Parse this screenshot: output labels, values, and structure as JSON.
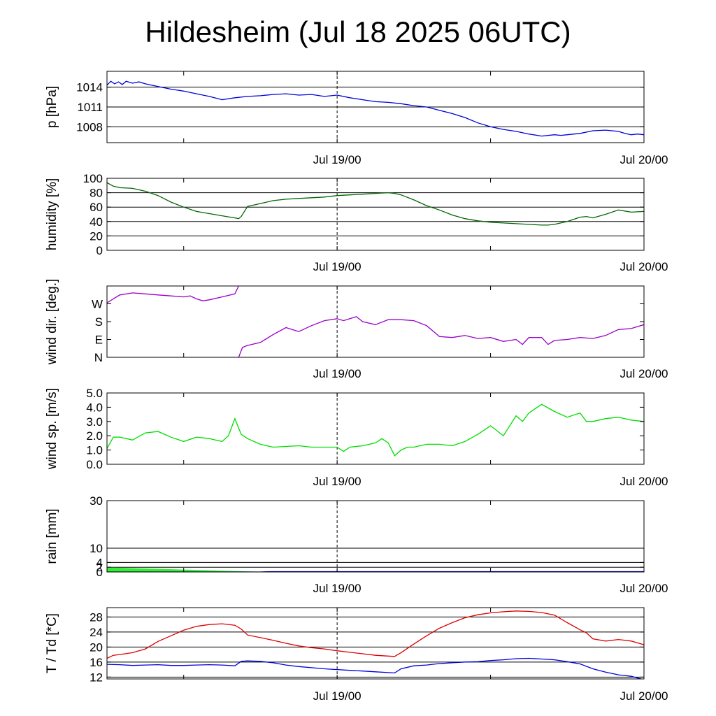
{
  "title": "Hildesheim (Jul 18 2025 06UTC)",
  "time_axis": {
    "start_hour": 0,
    "end_hour": 42,
    "major_labels": [
      {
        "hour": 18,
        "label": "Jul 19/00"
      },
      {
        "hour": 42,
        "label": "Jul 20/00"
      }
    ],
    "minor_tick_hours": [
      6,
      30
    ],
    "dashed_marker_hour": 18
  },
  "chart_data": [
    {
      "type": "line",
      "ylabel": "p [hPa]",
      "ylim": [
        1005.6,
        1016.4
      ],
      "yticks": [
        {
          "v": 1008,
          "label": "1008"
        },
        {
          "v": 1011,
          "label": "1011"
        },
        {
          "v": 1014,
          "label": "1014"
        }
      ],
      "grid": [
        1008,
        1011,
        1014
      ],
      "series": [
        {
          "color": "#0000dd",
          "x": [
            0,
            0.3,
            0.6,
            0.9,
            1.2,
            1.5,
            2,
            2.5,
            3,
            4,
            5,
            6,
            7,
            8,
            9,
            10,
            11,
            12,
            13,
            14,
            15,
            16,
            17,
            18,
            19,
            20,
            21,
            22,
            23,
            24,
            25,
            26,
            27,
            28,
            29,
            30,
            31,
            32,
            33,
            34,
            35,
            35.5,
            36,
            37,
            38,
            39,
            40,
            40.5,
            41,
            41.5,
            42
          ],
          "y": [
            1014.3,
            1014.9,
            1014.5,
            1014.8,
            1014.4,
            1014.9,
            1014.6,
            1014.8,
            1014.5,
            1014.1,
            1013.7,
            1013.4,
            1013.0,
            1012.6,
            1012.1,
            1012.4,
            1012.6,
            1012.7,
            1012.9,
            1013.0,
            1012.8,
            1012.9,
            1012.6,
            1012.8,
            1012.4,
            1012.1,
            1011.8,
            1011.7,
            1011.5,
            1011.2,
            1011.0,
            1010.5,
            1010.0,
            1009.4,
            1008.6,
            1008.0,
            1007.6,
            1007.3,
            1006.9,
            1006.6,
            1006.8,
            1006.7,
            1006.8,
            1007.0,
            1007.4,
            1007.5,
            1007.3,
            1007.0,
            1006.8,
            1006.9,
            1006.8
          ]
        }
      ]
    },
    {
      "type": "line",
      "ylabel": "humidity [%]",
      "ylim": [
        0,
        100
      ],
      "yticks": [
        {
          "v": 0,
          "label": "0"
        },
        {
          "v": 20,
          "label": "20"
        },
        {
          "v": 40,
          "label": "40"
        },
        {
          "v": 60,
          "label": "60"
        },
        {
          "v": 80,
          "label": "80"
        },
        {
          "v": 100,
          "label": "100"
        }
      ],
      "grid": [
        20,
        40,
        60,
        80
      ],
      "series": [
        {
          "color": "#006600",
          "x": [
            0,
            0.5,
            1,
            2,
            3,
            4,
            5,
            6,
            7,
            8,
            9,
            10,
            10.3,
            10.5,
            11,
            12,
            13,
            14,
            15,
            16,
            17,
            18,
            19,
            20,
            21,
            22,
            22.5,
            23,
            24,
            25,
            26,
            27,
            28,
            29,
            30,
            31,
            32,
            33,
            34,
            34.5,
            35,
            36,
            37,
            37.5,
            38,
            39,
            40,
            41,
            42
          ],
          "y": [
            94,
            89,
            87,
            86,
            82,
            76,
            67,
            60,
            54,
            51,
            48,
            45,
            44,
            47,
            61,
            65,
            69,
            71,
            72,
            73,
            74,
            76,
            77,
            78,
            79,
            80,
            79,
            77,
            70,
            62,
            56,
            49,
            44,
            41,
            39,
            38,
            37,
            36,
            35,
            35,
            36,
            40,
            46,
            47,
            45,
            50,
            56,
            53,
            54
          ]
        }
      ]
    },
    {
      "type": "line",
      "ylabel": "wind dir. [deg.]",
      "ylim": [
        0,
        360
      ],
      "yticks": [
        {
          "v": 0,
          "label": "N"
        },
        {
          "v": 90,
          "label": "E"
        },
        {
          "v": 180,
          "label": "S"
        },
        {
          "v": 270,
          "label": "W"
        }
      ],
      "grid": [],
      "series": [
        {
          "color": "#9900cc",
          "x": [
            0,
            0.5,
            1,
            2,
            3,
            4,
            5,
            6,
            6.5,
            7,
            7.5,
            8,
            9,
            10,
            10.3
          ],
          "y": [
            275,
            295,
            315,
            325,
            320,
            315,
            310,
            305,
            310,
            295,
            285,
            290,
            305,
            320,
            360
          ]
        },
        {
          "color": "#9900cc",
          "x": [
            10.3,
            10.6,
            11,
            12,
            13,
            14,
            15,
            16,
            17,
            18,
            18.5,
            19,
            19.5,
            20,
            21,
            22,
            23,
            24,
            25,
            26,
            27,
            28,
            29,
            30,
            31,
            32,
            32.5,
            33,
            34,
            34.5,
            35,
            36,
            37,
            38,
            39,
            40,
            41,
            42
          ],
          "y": [
            0,
            50,
            60,
            75,
            115,
            150,
            130,
            160,
            185,
            195,
            185,
            195,
            205,
            180,
            165,
            190,
            190,
            185,
            160,
            105,
            100,
            110,
            95,
            100,
            80,
            90,
            65,
            100,
            100,
            65,
            85,
            90,
            100,
            95,
            110,
            140,
            145,
            165
          ]
        }
      ]
    },
    {
      "type": "line",
      "ylabel": "wind sp. [m/s]",
      "ylim": [
        0,
        5
      ],
      "yticks": [
        {
          "v": 0,
          "label": "0.0"
        },
        {
          "v": 1,
          "label": "1.0"
        },
        {
          "v": 2,
          "label": "2.0"
        },
        {
          "v": 3,
          "label": "3.0"
        },
        {
          "v": 4,
          "label": "4.0"
        },
        {
          "v": 5,
          "label": "5.0"
        }
      ],
      "grid": [],
      "series": [
        {
          "color": "#00dd00",
          "x": [
            0,
            0.5,
            1,
            2,
            3,
            4,
            5,
            6,
            7,
            8,
            9,
            9.5,
            10,
            10.5,
            11,
            12,
            13,
            14,
            15,
            16,
            17,
            18,
            18.5,
            19,
            20,
            21,
            21.5,
            22,
            22.5,
            23,
            23.5,
            24,
            25,
            26,
            27,
            28,
            29,
            30,
            31,
            32,
            32.5,
            33,
            34,
            35,
            36,
            37,
            37.5,
            38,
            39,
            40,
            41,
            42
          ],
          "y": [
            1.1,
            1.9,
            1.9,
            1.7,
            2.2,
            2.3,
            1.9,
            1.6,
            1.9,
            1.8,
            1.6,
            2.0,
            3.2,
            2.1,
            1.8,
            1.4,
            1.2,
            1.25,
            1.3,
            1.2,
            1.2,
            1.2,
            0.9,
            1.2,
            1.3,
            1.5,
            1.8,
            1.5,
            0.6,
            1.0,
            1.2,
            1.2,
            1.4,
            1.4,
            1.3,
            1.6,
            2.1,
            2.7,
            2.0,
            3.4,
            3.0,
            3.6,
            4.2,
            3.7,
            3.3,
            3.6,
            3.0,
            3.0,
            3.2,
            3.3,
            3.1,
            3.0
          ]
        }
      ]
    },
    {
      "type": "area",
      "ylabel": "rain [mm]",
      "ylim": [
        0,
        30
      ],
      "yticks": [
        {
          "v": 0,
          "label": "0"
        },
        {
          "v": 2,
          "label": "2"
        },
        {
          "v": 4,
          "label": "4"
        },
        {
          "v": 10,
          "label": "10"
        },
        {
          "v": 30,
          "label": "30"
        }
      ],
      "grid": [
        2,
        4,
        10,
        30
      ],
      "series": [
        {
          "color": "#33ee33",
          "fill": true,
          "x": [
            0,
            12.5
          ],
          "y": [
            1.9,
            0.0
          ]
        },
        {
          "color": "#0000dd",
          "x": [
            0,
            12,
            12.5,
            13,
            42
          ],
          "y": [
            0,
            0,
            0.1,
            0.15,
            0.15
          ]
        }
      ]
    },
    {
      "type": "line",
      "ylabel": "T / Td [*C]",
      "ylim": [
        11.5,
        30.5
      ],
      "yticks": [
        {
          "v": 12,
          "label": "12"
        },
        {
          "v": 16,
          "label": "16"
        },
        {
          "v": 20,
          "label": "20"
        },
        {
          "v": 24,
          "label": "24"
        },
        {
          "v": 28,
          "label": "28"
        }
      ],
      "grid": [
        12,
        16,
        20,
        24,
        28
      ],
      "series": [
        {
          "color": "#dd0000",
          "x": [
            0,
            0.5,
            1,
            2,
            3,
            4,
            5,
            6,
            7,
            8,
            9,
            10,
            10.5,
            11,
            12,
            13,
            14,
            15,
            16,
            17,
            18,
            19,
            20,
            21,
            22,
            22.5,
            23,
            24,
            25,
            26,
            27,
            28,
            29,
            30,
            31,
            32,
            33,
            34,
            35,
            36,
            37,
            37.5,
            38,
            39,
            40,
            41,
            42
          ],
          "y": [
            17.0,
            17.8,
            18.0,
            18.5,
            19.5,
            21.5,
            23.0,
            24.5,
            25.5,
            26.0,
            26.2,
            25.8,
            24.8,
            23.2,
            22.5,
            21.8,
            21.0,
            20.3,
            19.8,
            19.5,
            19.0,
            18.6,
            18.2,
            17.8,
            17.6,
            17.5,
            18.5,
            20.8,
            23.0,
            25.0,
            26.5,
            27.8,
            28.6,
            29.1,
            29.4,
            29.6,
            29.5,
            29.2,
            28.5,
            26.5,
            24.6,
            23.8,
            22.2,
            21.6,
            22.0,
            21.6,
            20.6
          ]
        },
        {
          "color": "#0000dd",
          "x": [
            0,
            1,
            2,
            3,
            4,
            5,
            6,
            7,
            8,
            9,
            10,
            10.5,
            11,
            12,
            13,
            14,
            15,
            16,
            17,
            18,
            19,
            20,
            21,
            22,
            22.5,
            23,
            24,
            25,
            26,
            27,
            28,
            29,
            30,
            31,
            32,
            33,
            34,
            35,
            36,
            37,
            38,
            39,
            40,
            41,
            42
          ],
          "y": [
            15.4,
            15.3,
            15.1,
            15.2,
            15.3,
            15.1,
            15.1,
            15.2,
            15.3,
            15.2,
            15.0,
            16.2,
            16.3,
            16.2,
            15.8,
            15.2,
            14.8,
            14.5,
            14.2,
            14.0,
            13.8,
            13.6,
            13.4,
            13.2,
            13.1,
            14.2,
            15.0,
            15.2,
            15.6,
            15.8,
            16.0,
            16.1,
            16.4,
            16.6,
            16.9,
            17.0,
            16.8,
            16.6,
            16.1,
            15.5,
            14.2,
            13.3,
            12.6,
            12.2,
            11.3
          ]
        }
      ]
    }
  ]
}
